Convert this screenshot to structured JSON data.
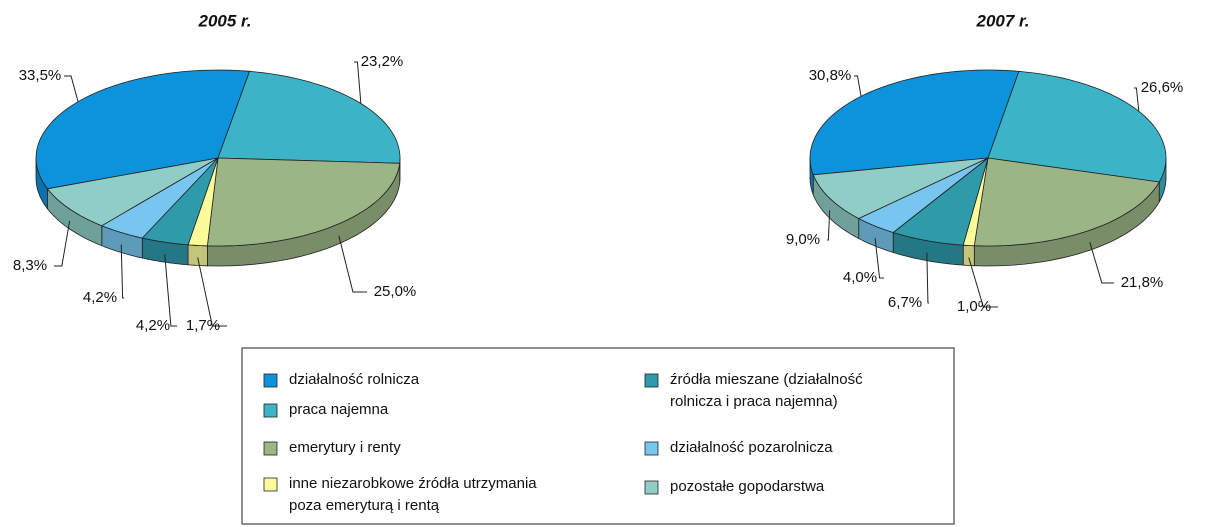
{
  "legend": {
    "items": [
      {
        "lines": [
          "działalność rolnicza"
        ],
        "color": "#0d93dc"
      },
      {
        "lines": [
          "praca najemna"
        ],
        "color": "#3cb3c6"
      },
      {
        "lines": [
          "emerytury i renty"
        ],
        "color": "#9bb586"
      },
      {
        "lines": [
          "inne niezarobkowe źródła utrzymania",
          "poza emeryturą i rentą"
        ],
        "color": "#fbfb9c"
      },
      {
        "lines": [
          "źródła mieszane (działalność",
          "rolnicza i praca najemna)"
        ],
        "color": "#2e9aaa"
      },
      {
        "lines": [
          "działalność pozarolnicza"
        ],
        "color": "#78c6ef"
      },
      {
        "lines": [
          "pozostałe gopodarstwa"
        ],
        "color": "#8fcdc6"
      }
    ]
  },
  "chart_data": [
    {
      "type": "pie",
      "title": "2005 r.",
      "values": [
        33.5,
        23.2,
        25.0,
        1.7,
        4.2,
        4.2,
        8.3
      ],
      "value_labels": [
        "33,5%",
        "23,2%",
        "25,0%",
        "1,7%",
        "4,2%",
        "4,2%",
        "8,3%"
      ]
    },
    {
      "type": "pie",
      "title": "2007 r.",
      "values": [
        30.8,
        26.6,
        21.8,
        1.0,
        6.7,
        4.0,
        9.0
      ],
      "value_labels": [
        "30,8%",
        "26,6%",
        "21,8%",
        "1,0%",
        "6,7%",
        "4,0%",
        "9,0%"
      ]
    }
  ]
}
